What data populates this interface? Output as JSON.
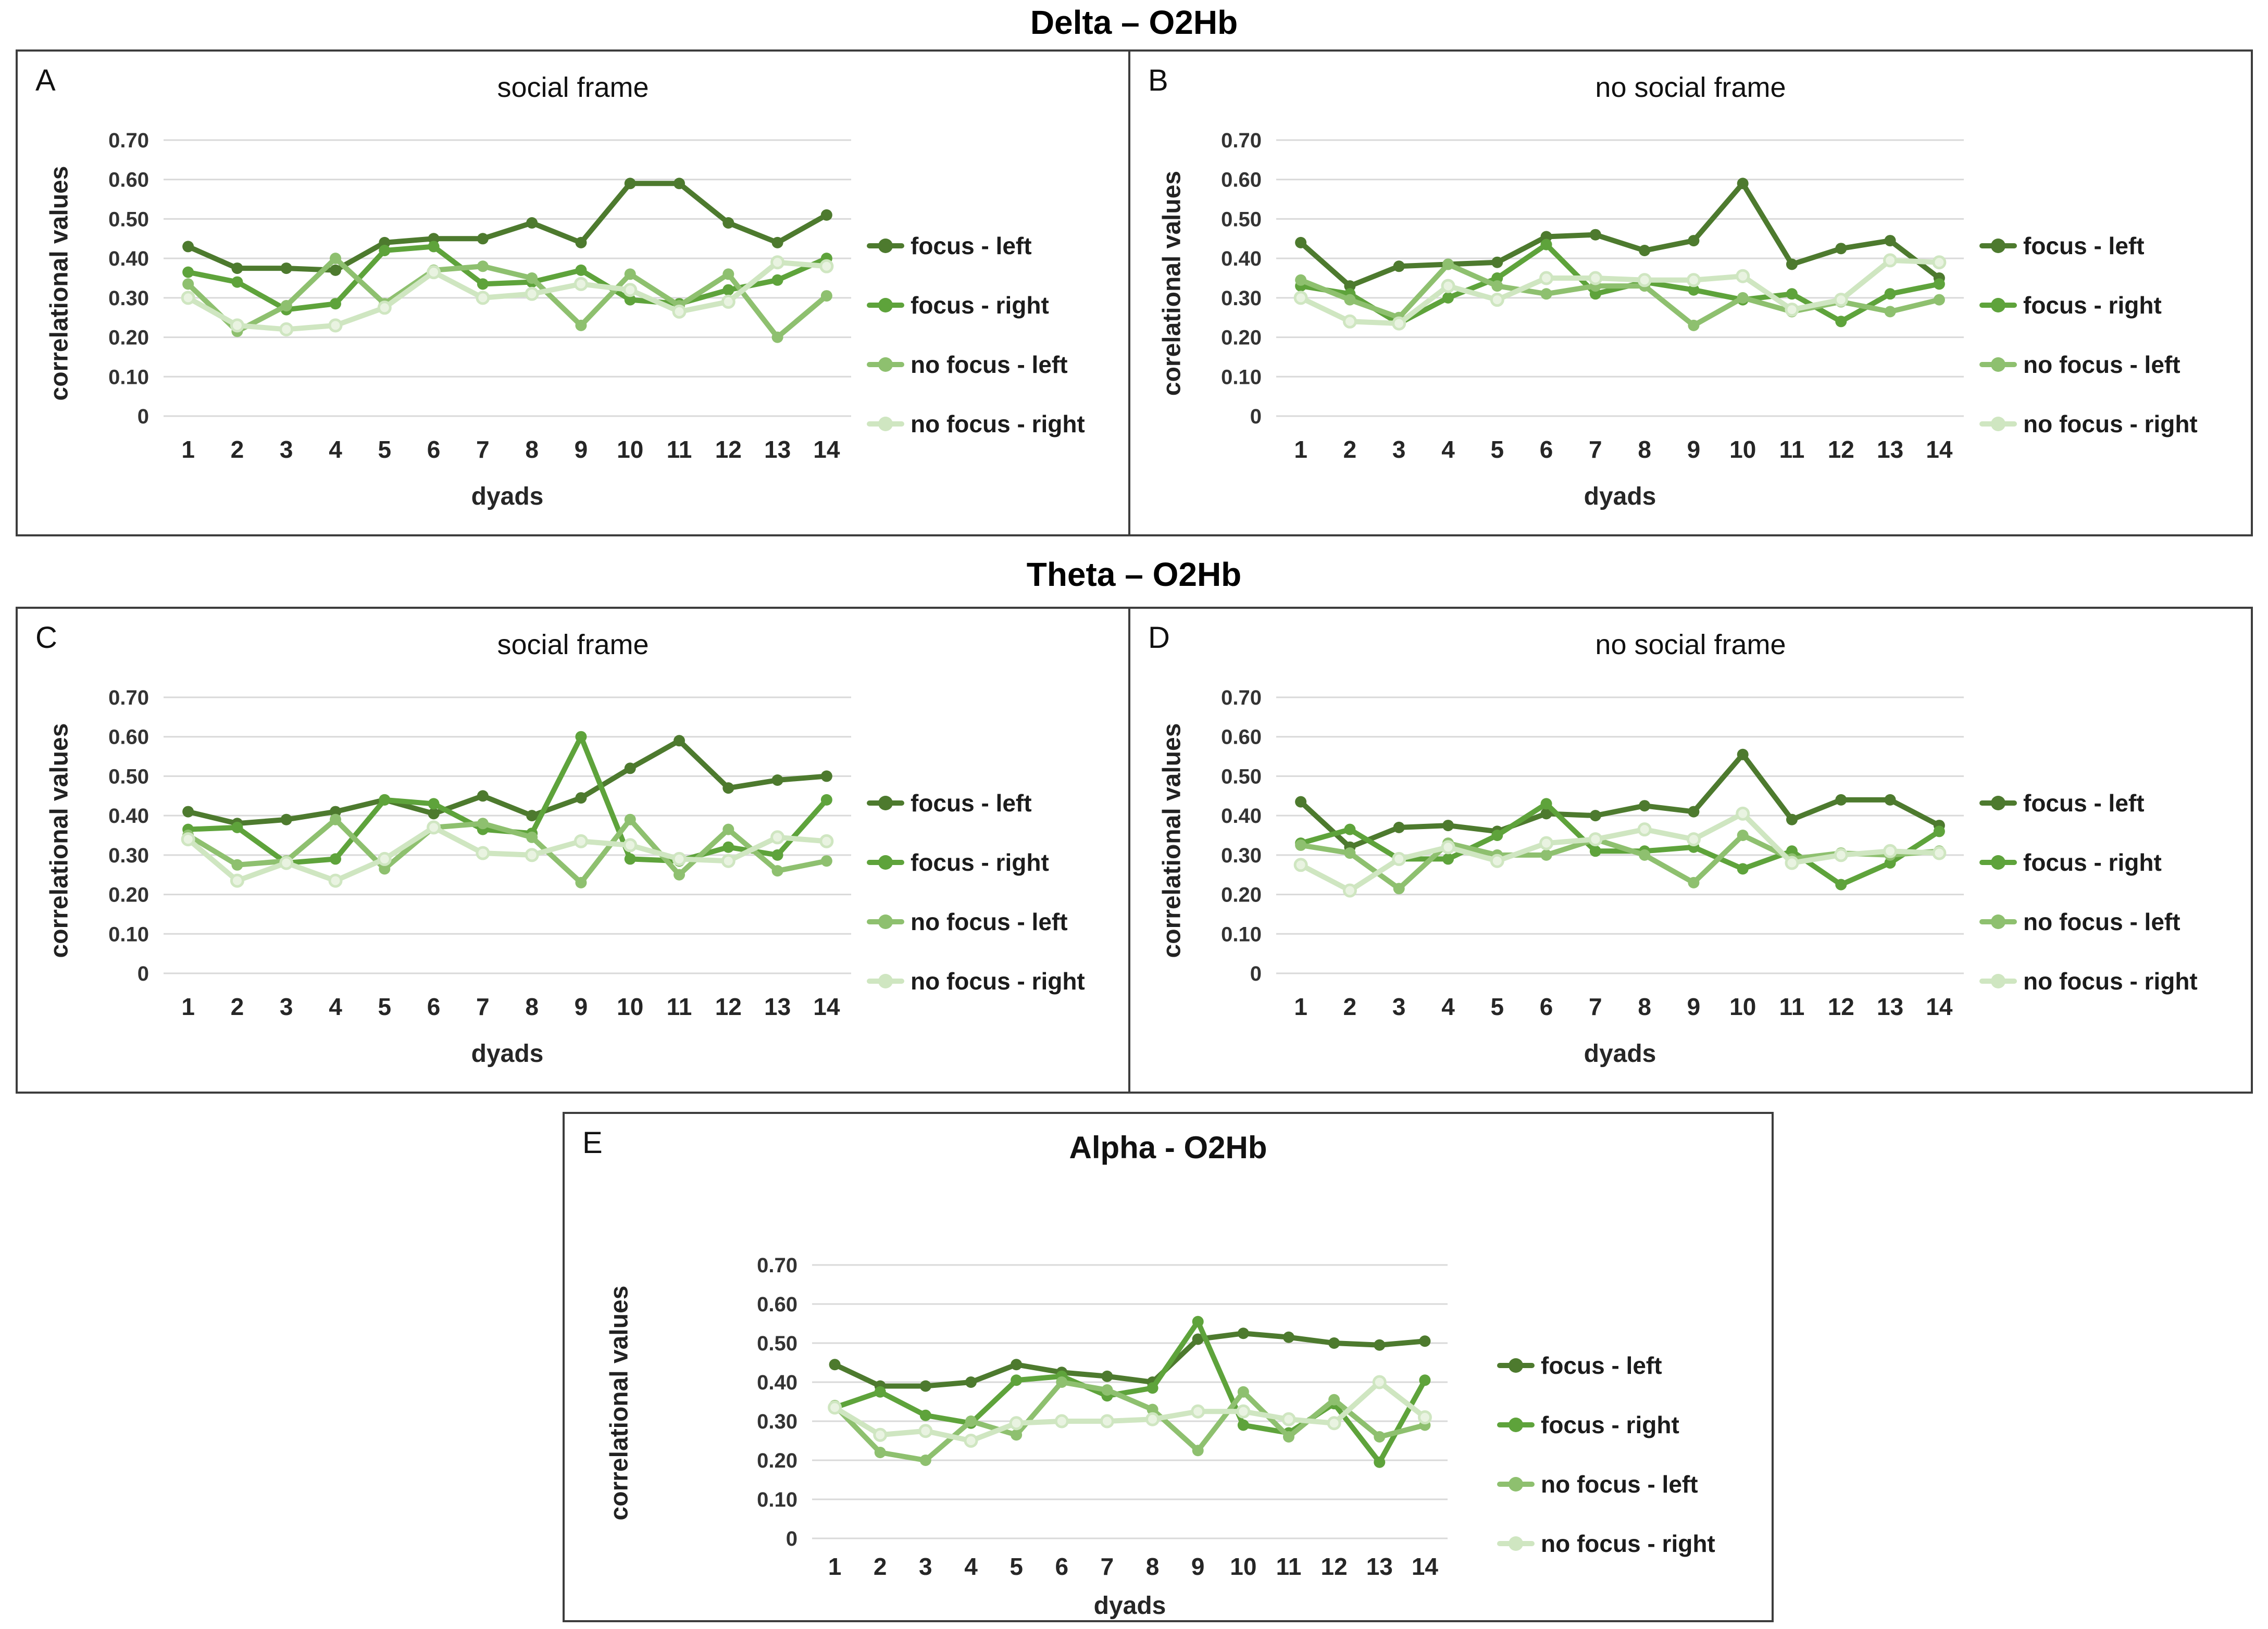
{
  "figure": {
    "section_titles": {
      "delta": "Delta – O2Hb",
      "theta": "Theta – O2Hb"
    }
  },
  "colors": {
    "focus_left": "#4d7a2e",
    "focus_right": "#5ea33b",
    "no_focus_left": "#8ec06f",
    "no_focus_right": "#cfe6c1",
    "no_focus_right_fill": "#e9f3e1",
    "grid": "#d9d9d9",
    "tick_text": "#333333",
    "axis_text": "#262626"
  },
  "legend_labels": [
    "focus - left",
    "focus - right",
    "no focus - left",
    "no focus - right"
  ],
  "axes": {
    "y_ticks": [
      "0.70",
      "0.60",
      "0.50",
      "0.40",
      "0.30",
      "0.20",
      "0.10",
      "0"
    ],
    "ymax": 0.7,
    "xlabel": "dyads",
    "x_categories": [
      1,
      2,
      3,
      4,
      5,
      6,
      7,
      8,
      9,
      10,
      11,
      12,
      13,
      14
    ]
  },
  "chart_data": [
    {
      "id": "A",
      "type": "line",
      "letter": "A",
      "title": "social frame",
      "ylabel": "correlational values",
      "xlabel": "dyads",
      "ylim": [
        0,
        0.7
      ],
      "categories": [
        1,
        2,
        3,
        4,
        5,
        6,
        7,
        8,
        9,
        10,
        11,
        12,
        13,
        14
      ],
      "series": [
        {
          "name": "focus - left",
          "color_key": "focus_left",
          "values": [
            0.43,
            0.375,
            0.375,
            0.37,
            0.44,
            0.45,
            0.45,
            0.49,
            0.44,
            0.59,
            0.59,
            0.49,
            0.44,
            0.51
          ]
        },
        {
          "name": "focus - right",
          "color_key": "focus_right",
          "values": [
            0.365,
            0.34,
            0.27,
            0.285,
            0.42,
            0.43,
            0.335,
            0.34,
            0.37,
            0.295,
            0.285,
            0.32,
            0.345,
            0.4
          ]
        },
        {
          "name": "no focus - left",
          "color_key": "no_focus_left",
          "values": [
            0.335,
            0.215,
            0.28,
            0.4,
            0.285,
            0.37,
            0.38,
            0.35,
            0.23,
            0.36,
            0.28,
            0.36,
            0.2,
            0.305
          ]
        },
        {
          "name": "no focus - right",
          "color_key": "no_focus_right",
          "values": [
            0.3,
            0.23,
            0.22,
            0.23,
            0.275,
            0.365,
            0.3,
            0.31,
            0.335,
            0.32,
            0.265,
            0.29,
            0.39,
            0.38
          ]
        }
      ]
    },
    {
      "id": "B",
      "type": "line",
      "letter": "B",
      "title": "no social frame",
      "ylabel": "corelational values",
      "xlabel": "dyads",
      "ylim": [
        0,
        0.7
      ],
      "categories": [
        1,
        2,
        3,
        4,
        5,
        6,
        7,
        8,
        9,
        10,
        11,
        12,
        13,
        14
      ],
      "series": [
        {
          "name": "focus - left",
          "color_key": "focus_left",
          "values": [
            0.44,
            0.33,
            0.38,
            0.385,
            0.39,
            0.455,
            0.46,
            0.42,
            0.445,
            0.59,
            0.385,
            0.425,
            0.445,
            0.35
          ]
        },
        {
          "name": "focus - right",
          "color_key": "focus_right",
          "values": [
            0.33,
            0.31,
            0.235,
            0.3,
            0.35,
            0.435,
            0.31,
            0.34,
            0.32,
            0.295,
            0.31,
            0.24,
            0.31,
            0.335
          ]
        },
        {
          "name": "no focus - left",
          "color_key": "no_focus_left",
          "values": [
            0.345,
            0.295,
            0.25,
            0.385,
            0.33,
            0.31,
            0.33,
            0.33,
            0.23,
            0.3,
            0.265,
            0.29,
            0.265,
            0.295
          ]
        },
        {
          "name": "no focus - right",
          "color_key": "no_focus_right",
          "values": [
            0.3,
            0.24,
            0.235,
            0.33,
            0.295,
            0.35,
            0.35,
            0.345,
            0.345,
            0.355,
            0.27,
            0.295,
            0.395,
            0.39
          ]
        }
      ]
    },
    {
      "id": "C",
      "type": "line",
      "letter": "C",
      "title": "social frame",
      "ylabel": "correlational values",
      "xlabel": "dyads",
      "ylim": [
        0,
        0.7
      ],
      "categories": [
        1,
        2,
        3,
        4,
        5,
        6,
        7,
        8,
        9,
        10,
        11,
        12,
        13,
        14
      ],
      "series": [
        {
          "name": "focus - left",
          "color_key": "focus_left",
          "values": [
            0.41,
            0.38,
            0.39,
            0.41,
            0.44,
            0.405,
            0.45,
            0.4,
            0.445,
            0.52,
            0.59,
            0.47,
            0.49,
            0.5
          ]
        },
        {
          "name": "focus - right",
          "color_key": "focus_right",
          "values": [
            0.365,
            0.37,
            0.28,
            0.29,
            0.44,
            0.43,
            0.365,
            0.355,
            0.6,
            0.29,
            0.285,
            0.32,
            0.3,
            0.44
          ]
        },
        {
          "name": "no focus - left",
          "color_key": "no_focus_left",
          "values": [
            0.35,
            0.275,
            0.285,
            0.39,
            0.265,
            0.37,
            0.38,
            0.345,
            0.23,
            0.39,
            0.25,
            0.365,
            0.26,
            0.285
          ]
        },
        {
          "name": "no focus - right",
          "color_key": "no_focus_right",
          "values": [
            0.34,
            0.235,
            0.28,
            0.235,
            0.29,
            0.37,
            0.305,
            0.3,
            0.335,
            0.325,
            0.29,
            0.285,
            0.345,
            0.335
          ]
        }
      ]
    },
    {
      "id": "D",
      "type": "line",
      "letter": "D",
      "title": "no social frame",
      "ylabel": "correlational values",
      "xlabel": "dyads",
      "ylim": [
        0,
        0.7
      ],
      "categories": [
        1,
        2,
        3,
        4,
        5,
        6,
        7,
        8,
        9,
        10,
        11,
        12,
        13,
        14
      ],
      "series": [
        {
          "name": "focus - left",
          "color_key": "focus_left",
          "values": [
            0.435,
            0.32,
            0.37,
            0.375,
            0.36,
            0.405,
            0.4,
            0.425,
            0.41,
            0.555,
            0.39,
            0.44,
            0.44,
            0.375
          ]
        },
        {
          "name": "focus - right",
          "color_key": "focus_right",
          "values": [
            0.33,
            0.365,
            0.29,
            0.29,
            0.35,
            0.43,
            0.31,
            0.31,
            0.32,
            0.265,
            0.31,
            0.225,
            0.28,
            0.36
          ]
        },
        {
          "name": "no focus - left",
          "color_key": "no_focus_left",
          "values": [
            0.325,
            0.305,
            0.215,
            0.33,
            0.3,
            0.3,
            0.34,
            0.3,
            0.23,
            0.35,
            0.29,
            0.305,
            0.3,
            0.31
          ]
        },
        {
          "name": "no focus - right",
          "color_key": "no_focus_right",
          "values": [
            0.275,
            0.21,
            0.29,
            0.32,
            0.285,
            0.33,
            0.34,
            0.365,
            0.34,
            0.405,
            0.28,
            0.3,
            0.31,
            0.305
          ]
        }
      ]
    },
    {
      "id": "E",
      "type": "line",
      "letter": "E",
      "title": "Alpha - O2Hb",
      "ylabel": "correlational values",
      "xlabel": "dyads",
      "ylim": [
        0,
        0.7
      ],
      "categories": [
        1,
        2,
        3,
        4,
        5,
        6,
        7,
        8,
        9,
        10,
        11,
        12,
        13,
        14
      ],
      "series": [
        {
          "name": "focus - left",
          "color_key": "focus_left",
          "values": [
            0.445,
            0.39,
            0.39,
            0.4,
            0.445,
            0.425,
            0.415,
            0.4,
            0.51,
            0.525,
            0.515,
            0.5,
            0.495,
            0.505
          ]
        },
        {
          "name": "focus - right",
          "color_key": "focus_right",
          "values": [
            0.335,
            0.375,
            0.315,
            0.295,
            0.405,
            0.415,
            0.365,
            0.385,
            0.555,
            0.29,
            0.27,
            0.345,
            0.195,
            0.405
          ]
        },
        {
          "name": "no focus - left",
          "color_key": "no_focus_left",
          "values": [
            0.34,
            0.22,
            0.2,
            0.3,
            0.265,
            0.4,
            0.38,
            0.33,
            0.225,
            0.375,
            0.26,
            0.355,
            0.26,
            0.29
          ]
        },
        {
          "name": "no focus - right",
          "color_key": "no_focus_right",
          "values": [
            0.335,
            0.265,
            0.275,
            0.25,
            0.295,
            0.3,
            0.3,
            0.305,
            0.325,
            0.325,
            0.305,
            0.295,
            0.4,
            0.31
          ]
        }
      ]
    }
  ]
}
